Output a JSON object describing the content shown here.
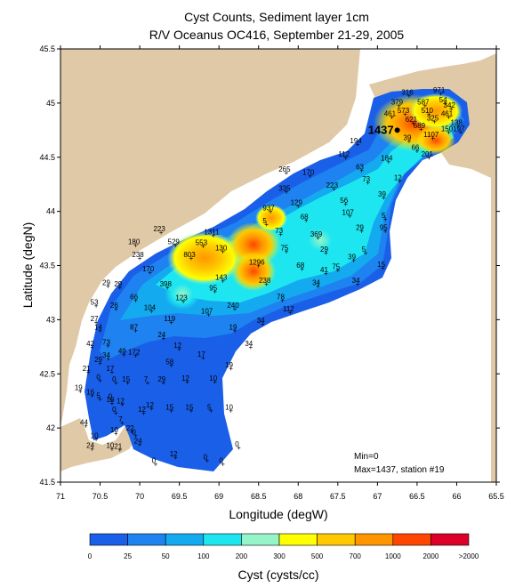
{
  "title": "Cyst Counts, Sediment layer 1cm",
  "subtitle": "R/V Oceanus OC416, September 21-29, 2005",
  "xlabel": "Longitude (degW)",
  "ylabel": "Latitude (degN)",
  "x_ticks": [
    "71",
    "70.5",
    "70",
    "69.5",
    "69",
    "68.5",
    "68",
    "67.5",
    "67",
    "66.5",
    "66",
    "65.5"
  ],
  "y_ticks": [
    "45.5",
    "45",
    "44.5",
    "44",
    "43.5",
    "43",
    "42.5",
    "42",
    "41.5"
  ],
  "min_label": "Min=0",
  "max_label": "Max=1437, station #19",
  "colorbar": {
    "title": "Cyst (cysts/cc)",
    "ticks": [
      "0",
      "25",
      "50",
      "100",
      "200",
      "300",
      "500",
      "700",
      "1000",
      "2000",
      ">2000"
    ],
    "colors": [
      "#1a5fe8",
      "#1e82f0",
      "#14aaf0",
      "#1ee6f0",
      "#96f5c8",
      "#ffff00",
      "#ffc800",
      "#ff9600",
      "#ff4600",
      "#dc0028"
    ]
  },
  "colors": {
    "land": "#e0c9a6",
    "background": "#ffffff"
  },
  "chart_data": {
    "type": "contour-map",
    "xlim": [
      -71,
      -65.5
    ],
    "ylim": [
      41.5,
      45.5
    ],
    "max": {
      "value": 1437,
      "station": 19,
      "label": "1437"
    },
    "stations": [
      {
        "lon": -66.6,
        "lat": 45.07,
        "v": "316"
      },
      {
        "lon": -66.2,
        "lat": 45.09,
        "v": "971"
      },
      {
        "lon": -66.73,
        "lat": 44.98,
        "v": "379"
      },
      {
        "lon": -66.4,
        "lat": 44.98,
        "v": "587"
      },
      {
        "lon": -66.15,
        "lat": 45.0,
        "v": "54"
      },
      {
        "lon": -66.07,
        "lat": 44.95,
        "v": "342"
      },
      {
        "lon": -66.65,
        "lat": 44.9,
        "v": "573"
      },
      {
        "lon": -66.35,
        "lat": 44.9,
        "v": "510"
      },
      {
        "lon": -66.82,
        "lat": 44.87,
        "v": "461"
      },
      {
        "lon": -66.1,
        "lat": 44.87,
        "v": "461"
      },
      {
        "lon": -66.28,
        "lat": 44.83,
        "v": "325"
      },
      {
        "lon": -66.55,
        "lat": 44.82,
        "v": "621"
      },
      {
        "lon": -65.98,
        "lat": 44.79,
        "v": "138"
      },
      {
        "lon": -66.45,
        "lat": 44.76,
        "v": "689"
      },
      {
        "lon": -66.1,
        "lat": 44.73,
        "v": "150"
      },
      {
        "lon": -65.95,
        "lat": 44.73,
        "v": "197"
      },
      {
        "lon": -66.6,
        "lat": 44.65,
        "v": "39"
      },
      {
        "lon": -66.3,
        "lat": 44.68,
        "v": "1107"
      },
      {
        "lon": -67.25,
        "lat": 44.62,
        "v": "194"
      },
      {
        "lon": -66.5,
        "lat": 44.56,
        "v": "66"
      },
      {
        "lon": -66.35,
        "lat": 44.5,
        "v": "201"
      },
      {
        "lon": -67.4,
        "lat": 44.5,
        "v": "112"
      },
      {
        "lon": -66.86,
        "lat": 44.46,
        "v": "184"
      },
      {
        "lon": -68.15,
        "lat": 44.36,
        "v": "265"
      },
      {
        "lon": -67.2,
        "lat": 44.38,
        "v": "63"
      },
      {
        "lon": -67.85,
        "lat": 44.33,
        "v": "170"
      },
      {
        "lon": -66.72,
        "lat": 44.28,
        "v": "12"
      },
      {
        "lon": -67.12,
        "lat": 44.27,
        "v": "73"
      },
      {
        "lon": -67.55,
        "lat": 44.21,
        "v": "223"
      },
      {
        "lon": -68.15,
        "lat": 44.18,
        "v": "335"
      },
      {
        "lon": -66.92,
        "lat": 44.13,
        "v": "39"
      },
      {
        "lon": -68.0,
        "lat": 44.05,
        "v": "129"
      },
      {
        "lon": -67.4,
        "lat": 44.07,
        "v": "56"
      },
      {
        "lon": -68.35,
        "lat": 44.0,
        "v": "937"
      },
      {
        "lon": -67.35,
        "lat": 43.96,
        "v": "107"
      },
      {
        "lon": -67.9,
        "lat": 43.92,
        "v": "68"
      },
      {
        "lon": -66.9,
        "lat": 43.93,
        "v": "5"
      },
      {
        "lon": -68.4,
        "lat": 43.88,
        "v": "5"
      },
      {
        "lon": -68.22,
        "lat": 43.79,
        "v": "73"
      },
      {
        "lon": -67.2,
        "lat": 43.82,
        "v": "29"
      },
      {
        "lon": -66.9,
        "lat": 43.82,
        "v": "95"
      },
      {
        "lon": -69.73,
        "lat": 43.81,
        "v": "223"
      },
      {
        "lon": -69.07,
        "lat": 43.78,
        "v": "1311"
      },
      {
        "lon": -67.75,
        "lat": 43.76,
        "v": "369"
      },
      {
        "lon": -70.05,
        "lat": 43.69,
        "v": "180"
      },
      {
        "lon": -69.55,
        "lat": 43.69,
        "v": "529"
      },
      {
        "lon": -69.2,
        "lat": 43.68,
        "v": "553"
      },
      {
        "lon": -68.95,
        "lat": 43.63,
        "v": "130"
      },
      {
        "lon": -68.15,
        "lat": 43.63,
        "v": "75"
      },
      {
        "lon": -67.65,
        "lat": 43.62,
        "v": "29"
      },
      {
        "lon": -67.15,
        "lat": 43.62,
        "v": "5"
      },
      {
        "lon": -70.0,
        "lat": 43.57,
        "v": "238"
      },
      {
        "lon": -69.35,
        "lat": 43.57,
        "v": "803"
      },
      {
        "lon": -67.3,
        "lat": 43.55,
        "v": "39"
      },
      {
        "lon": -68.5,
        "lat": 43.5,
        "v": "1296"
      },
      {
        "lon": -67.95,
        "lat": 43.47,
        "v": "68"
      },
      {
        "lon": -66.93,
        "lat": 43.48,
        "v": "15"
      },
      {
        "lon": -67.5,
        "lat": 43.46,
        "v": "75"
      },
      {
        "lon": -67.65,
        "lat": 43.43,
        "v": "41"
      },
      {
        "lon": -69.87,
        "lat": 43.44,
        "v": "170"
      },
      {
        "lon": -68.95,
        "lat": 43.36,
        "v": "143"
      },
      {
        "lon": -68.4,
        "lat": 43.33,
        "v": "238"
      },
      {
        "lon": -67.75,
        "lat": 43.31,
        "v": "34"
      },
      {
        "lon": -67.25,
        "lat": 43.33,
        "v": "34"
      },
      {
        "lon": -70.4,
        "lat": 43.31,
        "v": "29"
      },
      {
        "lon": -70.25,
        "lat": 43.3,
        "v": "29"
      },
      {
        "lon": -69.65,
        "lat": 43.3,
        "v": "398"
      },
      {
        "lon": -69.05,
        "lat": 43.26,
        "v": "95"
      },
      {
        "lon": -70.05,
        "lat": 43.18,
        "v": "66"
      },
      {
        "lon": -69.45,
        "lat": 43.17,
        "v": "123"
      },
      {
        "lon": -68.2,
        "lat": 43.18,
        "v": "78"
      },
      {
        "lon": -70.55,
        "lat": 43.13,
        "v": "53"
      },
      {
        "lon": -70.3,
        "lat": 43.1,
        "v": "26"
      },
      {
        "lon": -69.85,
        "lat": 43.08,
        "v": "104"
      },
      {
        "lon": -68.8,
        "lat": 43.1,
        "v": "240"
      },
      {
        "lon": -69.13,
        "lat": 43.05,
        "v": "107"
      },
      {
        "lon": -68.1,
        "lat": 43.07,
        "v": "112"
      },
      {
        "lon": -70.55,
        "lat": 42.98,
        "v": "27"
      },
      {
        "lon": -69.6,
        "lat": 42.98,
        "v": "119"
      },
      {
        "lon": -68.45,
        "lat": 42.96,
        "v": "34"
      },
      {
        "lon": -70.5,
        "lat": 42.9,
        "v": "14"
      },
      {
        "lon": -70.05,
        "lat": 42.9,
        "v": "87"
      },
      {
        "lon": -68.8,
        "lat": 42.9,
        "v": "19"
      },
      {
        "lon": -69.7,
        "lat": 42.83,
        "v": "24"
      },
      {
        "lon": -70.6,
        "lat": 42.75,
        "v": "42"
      },
      {
        "lon": -70.4,
        "lat": 42.76,
        "v": "73"
      },
      {
        "lon": -69.5,
        "lat": 42.73,
        "v": "12"
      },
      {
        "lon": -68.6,
        "lat": 42.75,
        "v": "34"
      },
      {
        "lon": -70.2,
        "lat": 42.68,
        "v": "49"
      },
      {
        "lon": -70.05,
        "lat": 42.67,
        "v": "172"
      },
      {
        "lon": -69.2,
        "lat": 42.65,
        "v": "17"
      },
      {
        "lon": -70.4,
        "lat": 42.64,
        "v": "34"
      },
      {
        "lon": -70.5,
        "lat": 42.6,
        "v": "29"
      },
      {
        "lon": -69.6,
        "lat": 42.58,
        "v": "58"
      },
      {
        "lon": -70.65,
        "lat": 42.52,
        "v": "21"
      },
      {
        "lon": -70.35,
        "lat": 42.52,
        "v": "17"
      },
      {
        "lon": -68.85,
        "lat": 42.55,
        "v": "19"
      },
      {
        "lon": -70.5,
        "lat": 42.44,
        "v": "0"
      },
      {
        "lon": -70.3,
        "lat": 42.42,
        "v": "0"
      },
      {
        "lon": -70.15,
        "lat": 42.42,
        "v": "15"
      },
      {
        "lon": -69.9,
        "lat": 42.42,
        "v": "7"
      },
      {
        "lon": -69.7,
        "lat": 42.42,
        "v": "29"
      },
      {
        "lon": -69.4,
        "lat": 42.43,
        "v": "12"
      },
      {
        "lon": -69.05,
        "lat": 42.43,
        "v": "10"
      },
      {
        "lon": -70.75,
        "lat": 42.34,
        "v": "19"
      },
      {
        "lon": -70.6,
        "lat": 42.3,
        "v": "16"
      },
      {
        "lon": -70.5,
        "lat": 42.27,
        "v": "5"
      },
      {
        "lon": -70.35,
        "lat": 42.26,
        "v": "0"
      },
      {
        "lon": -70.35,
        "lat": 42.23,
        "v": "10"
      },
      {
        "lon": -70.22,
        "lat": 42.22,
        "v": "12"
      },
      {
        "lon": -69.85,
        "lat": 42.18,
        "v": "12"
      },
      {
        "lon": -69.6,
        "lat": 42.16,
        "v": "15"
      },
      {
        "lon": -69.35,
        "lat": 42.16,
        "v": "15"
      },
      {
        "lon": -69.1,
        "lat": 42.16,
        "v": "5"
      },
      {
        "lon": -68.85,
        "lat": 42.16,
        "v": "10"
      },
      {
        "lon": -70.3,
        "lat": 42.14,
        "v": "0"
      },
      {
        "lon": -69.95,
        "lat": 42.14,
        "v": "12"
      },
      {
        "lon": -70.68,
        "lat": 42.02,
        "v": "44"
      },
      {
        "lon": -70.22,
        "lat": 42.05,
        "v": "7"
      },
      {
        "lon": -70.55,
        "lat": 41.9,
        "v": "10"
      },
      {
        "lon": -70.3,
        "lat": 41.95,
        "v": "10"
      },
      {
        "lon": -70.1,
        "lat": 41.97,
        "v": "22"
      },
      {
        "lon": -70.05,
        "lat": 41.93,
        "v": "0"
      },
      {
        "lon": -70.0,
        "lat": 41.85,
        "v": "24"
      },
      {
        "lon": -70.6,
        "lat": 41.81,
        "v": "24"
      },
      {
        "lon": -70.35,
        "lat": 41.81,
        "v": "10"
      },
      {
        "lon": -70.25,
        "lat": 41.8,
        "v": "21"
      },
      {
        "lon": -69.55,
        "lat": 41.73,
        "v": "12"
      },
      {
        "lon": -69.15,
        "lat": 41.7,
        "v": "0"
      },
      {
        "lon": -68.95,
        "lat": 41.67,
        "v": "0"
      },
      {
        "lon": -69.8,
        "lat": 41.67,
        "v": "0"
      },
      {
        "lon": -68.75,
        "lat": 41.82,
        "v": "0"
      }
    ]
  }
}
